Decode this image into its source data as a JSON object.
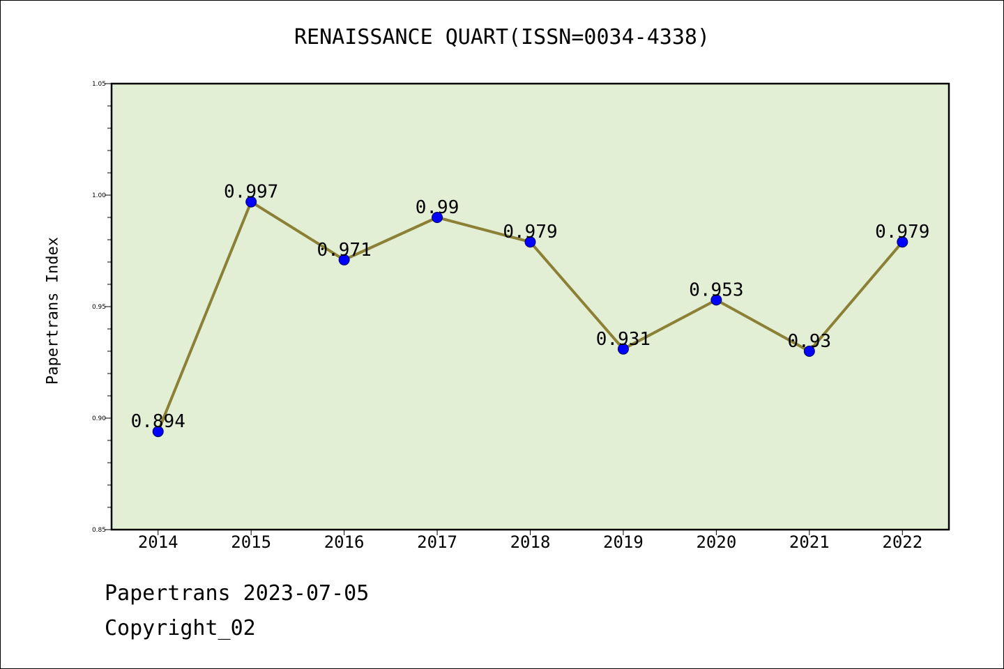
{
  "title": "RENAISSANCE QUART(ISSN=0034-4338)",
  "footer": {
    "date_line": "Papertrans 2023-07-05",
    "copyright_line": "Copyright_02"
  },
  "colors": {
    "plot_background": "#e2efd5",
    "line": "#8b8035",
    "marker": "#0000ff",
    "axis": "#000000"
  },
  "chart_data": {
    "type": "line",
    "title": "RENAISSANCE QUART(ISSN=0034-4338)",
    "xlabel": "",
    "ylabel": "Papertrans Index",
    "categories": [
      "2014",
      "2015",
      "2016",
      "2017",
      "2018",
      "2019",
      "2020",
      "2021",
      "2022"
    ],
    "series": [
      {
        "values": [
          0.894,
          0.997,
          0.971,
          0.99,
          0.979,
          0.931,
          0.953,
          0.93,
          0.979
        ],
        "labels": [
          "0.894",
          "0.997",
          "0.971",
          "0.99",
          "0.979",
          "0.931",
          "0.953",
          "0.93",
          "0.979"
        ]
      }
    ],
    "ylim": [
      0.85,
      1.05
    ],
    "yticks": [
      "0.85",
      "0.90",
      "0.95",
      "1.00",
      "1.05"
    ],
    "grid": false,
    "legend": "none"
  }
}
